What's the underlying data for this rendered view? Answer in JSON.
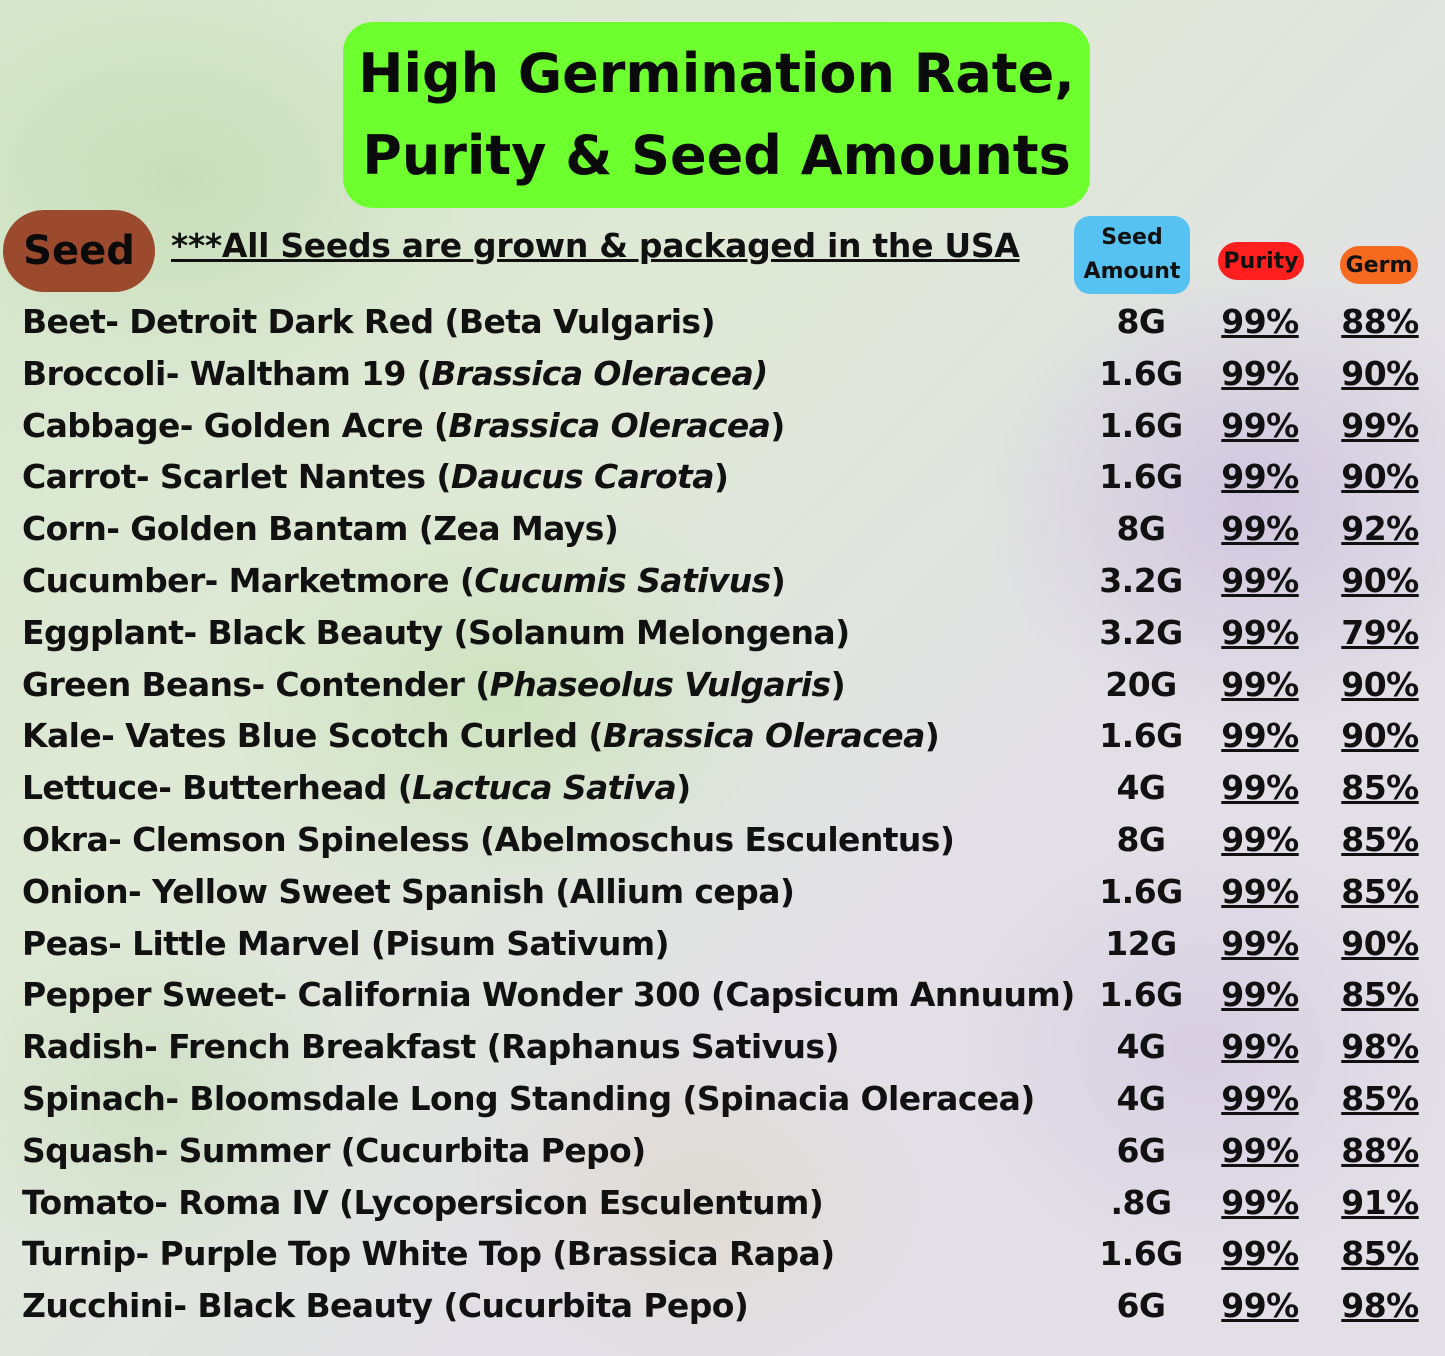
{
  "title": {
    "line1": "High Germination Rate,",
    "line2": "Purity & Seed Amounts"
  },
  "headers": {
    "seed": "Seed",
    "note": "***All Seeds are grown & packaged in the USA",
    "amount_line1": "Seed",
    "amount_line2": "Amount",
    "purity": "Purity",
    "germ": "Germ"
  },
  "colors": {
    "title_bg": "#6dff2e",
    "seed_badge": "#9c4a2e",
    "amount_badge": "#55c2f2",
    "purity_badge": "#ff1f1f",
    "germ_badge": "#f56a1f"
  },
  "rows": [
    {
      "common": "Beet- Detroit Dark Red ",
      "sci_open": "(",
      "sci": "Beta Vulgaris",
      "sci_close": ")",
      "italic": false,
      "amount": "8G",
      "purity": "99%",
      "germ": "88%"
    },
    {
      "common": "Broccoli- Waltham 19 ",
      "sci_open": "(",
      "sci": "Brassica Oleracea)",
      "sci_close": "",
      "italic": true,
      "amount": "1.6G",
      "purity": "99%",
      "germ": "90%"
    },
    {
      "common": "Cabbage- Golden Acre ",
      "sci_open": "(",
      "sci": "Brassica Oleracea",
      "sci_close": ")",
      "italic": true,
      "amount": "1.6G",
      "purity": "99%",
      "germ": "99%"
    },
    {
      "common": "Carrot- Scarlet Nantes ",
      "sci_open": "(",
      "sci": "Daucus Carota",
      "sci_close": ")",
      "italic": true,
      "amount": "1.6G",
      "purity": "99%",
      "germ": "90%"
    },
    {
      "common": "Corn- Golden Bantam ",
      "sci_open": "(",
      "sci": "Zea Mays",
      "sci_close": ")",
      "italic": false,
      "amount": "8G",
      "purity": "99%",
      "germ": "92%"
    },
    {
      "common": "Cucumber- Marketmore ",
      "sci_open": "(",
      "sci": "Cucumis Sativus",
      "sci_close": ")",
      "italic": true,
      "amount": "3.2G",
      "purity": "99%",
      "germ": "90%"
    },
    {
      "common": "Eggplant- Black Beauty ",
      "sci_open": "(",
      "sci": "Solanum Melongena",
      "sci_close": ")",
      "italic": false,
      "amount": "3.2G",
      "purity": "99%",
      "germ": "79%"
    },
    {
      "common": "Green Beans- Contender ",
      "sci_open": "(",
      "sci": "Phaseolus Vulgaris",
      "sci_close": ")",
      "italic": true,
      "amount": "20G",
      "purity": "99%",
      "germ": "90%"
    },
    {
      "common": "Kale- Vates Blue Scotch Curled ",
      "sci_open": "(",
      "sci": "Brassica Oleracea",
      "sci_close": ")",
      "italic": true,
      "amount": "1.6G",
      "purity": "99%",
      "germ": "90%"
    },
    {
      "common": "Lettuce- Butterhead ",
      "sci_open": "(",
      "sci": "Lactuca Sativa",
      "sci_close": ")",
      "italic": true,
      "amount": "4G",
      "purity": "99%",
      "germ": "85%"
    },
    {
      "common": "Okra- Clemson Spineless ",
      "sci_open": "(",
      "sci": "Abelmoschus Esculentus",
      "sci_close": ")",
      "italic": false,
      "amount": "8G",
      "purity": "99%",
      "germ": "85%"
    },
    {
      "common": "Onion- Yellow Sweet Spanish ",
      "sci_open": "(",
      "sci": "Allium cepa",
      "sci_close": ")",
      "italic": false,
      "amount": "1.6G",
      "purity": "99%",
      "germ": "85%"
    },
    {
      "common": "Peas- Little Marvel ",
      "sci_open": "(",
      "sci": "Pisum Sativum",
      "sci_close": ")",
      "italic": false,
      "amount": "12G",
      "purity": "99%",
      "germ": "90%"
    },
    {
      "common": "Pepper Sweet- California Wonder 300 ",
      "sci_open": "(",
      "sci": "Capsicum Annuum",
      "sci_close": ")",
      "italic": false,
      "amount": "1.6G",
      "purity": "99%",
      "germ": "85%"
    },
    {
      "common": "Radish- French Breakfast ",
      "sci_open": "(",
      "sci": "Raphanus Sativus",
      "sci_close": ")",
      "italic": false,
      "amount": "4G",
      "purity": "99%",
      "germ": "98%"
    },
    {
      "common": "Spinach- Bloomsdale Long Standing ",
      "sci_open": "(",
      "sci": "Spinacia Oleracea",
      "sci_close": ")",
      "italic": false,
      "amount": "4G",
      "purity": "99%",
      "germ": "85%"
    },
    {
      "common": "Squash- Summer ",
      "sci_open": "(",
      "sci": "Cucurbita Pepo",
      "sci_close": ")",
      "italic": false,
      "amount": "6G",
      "purity": "99%",
      "germ": "88%"
    },
    {
      "common": "Tomato- Roma IV ",
      "sci_open": "(",
      "sci": "Lycopersicon Esculentum",
      "sci_close": ")",
      "italic": false,
      "amount": ".8G",
      "purity": "99%",
      "germ": "91%"
    },
    {
      "common": "Turnip- Purple Top White Top ",
      "sci_open": "(",
      "sci": "Brassica Rapa",
      "sci_close": ")",
      "italic": false,
      "amount": "1.6G",
      "purity": "99%",
      "germ": "85%"
    },
    {
      "common": "Zucchini- Black Beauty ",
      "sci_open": "(",
      "sci": "Cucurbita Pepo",
      "sci_close": ")",
      "italic": false,
      "amount": "6G",
      "purity": "99%",
      "germ": "98%"
    }
  ]
}
